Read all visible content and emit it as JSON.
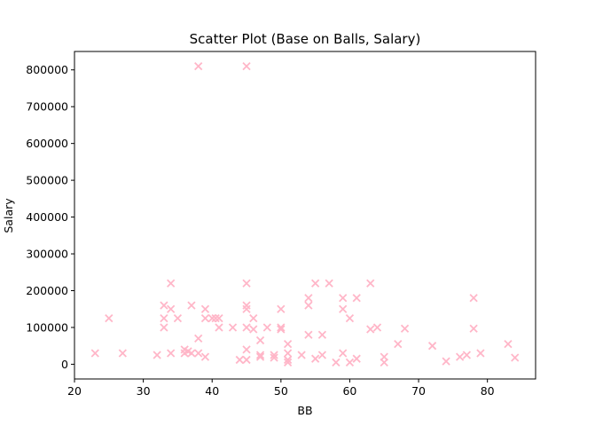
{
  "chart_data": {
    "type": "scatter",
    "title": "Scatter Plot (Base on Balls, Salary)",
    "xlabel": "BB",
    "ylabel": "Salary",
    "xlim": [
      20,
      87
    ],
    "ylim": [
      -40000,
      850000
    ],
    "xticks": [
      20,
      30,
      40,
      50,
      60,
      70,
      80
    ],
    "yticks": [
      0,
      100000,
      200000,
      300000,
      400000,
      500000,
      600000,
      700000,
      800000
    ],
    "marker": "x",
    "marker_color": "#ffb6c8",
    "grid": false,
    "points": [
      [
        38,
        810000
      ],
      [
        45,
        810000
      ],
      [
        34,
        220000
      ],
      [
        45,
        220000
      ],
      [
        55,
        220000
      ],
      [
        57,
        220000
      ],
      [
        63,
        220000
      ],
      [
        54,
        180000
      ],
      [
        59,
        180000
      ],
      [
        61,
        180000
      ],
      [
        78,
        180000
      ],
      [
        33,
        160000
      ],
      [
        37,
        160000
      ],
      [
        45,
        160000
      ],
      [
        54,
        160000
      ],
      [
        34,
        150000
      ],
      [
        39,
        150000
      ],
      [
        45,
        150000
      ],
      [
        50,
        150000
      ],
      [
        59,
        150000
      ],
      [
        25,
        125000
      ],
      [
        33,
        125000
      ],
      [
        35,
        125000
      ],
      [
        39,
        125000
      ],
      [
        40,
        125000
      ],
      [
        40.5,
        125000
      ],
      [
        41,
        125000
      ],
      [
        46,
        125000
      ],
      [
        60,
        125000
      ],
      [
        33,
        100000
      ],
      [
        41,
        100000
      ],
      [
        43,
        100000
      ],
      [
        45,
        100000
      ],
      [
        46,
        95000
      ],
      [
        48,
        100000
      ],
      [
        50,
        100000
      ],
      [
        50,
        95000
      ],
      [
        63,
        95000
      ],
      [
        64,
        100000
      ],
      [
        68,
        97000
      ],
      [
        78,
        97000
      ],
      [
        38,
        70000
      ],
      [
        47,
        65000
      ],
      [
        54,
        80000
      ],
      [
        56,
        80000
      ],
      [
        51,
        55000
      ],
      [
        67,
        55000
      ],
      [
        72,
        50000
      ],
      [
        83,
        55000
      ],
      [
        23,
        30000
      ],
      [
        27,
        30000
      ],
      [
        32,
        25000
      ],
      [
        34,
        30000
      ],
      [
        36,
        40000
      ],
      [
        36,
        30000
      ],
      [
        36.5,
        35000
      ],
      [
        37,
        30000
      ],
      [
        38,
        30000
      ],
      [
        39,
        20000
      ],
      [
        45,
        40000
      ],
      [
        47,
        25000
      ],
      [
        49,
        25000
      ],
      [
        51,
        30000
      ],
      [
        53,
        25000
      ],
      [
        56,
        25000
      ],
      [
        59,
        30000
      ],
      [
        65,
        20000
      ],
      [
        76,
        20000
      ],
      [
        77,
        25000
      ],
      [
        79,
        30000
      ],
      [
        84,
        18000
      ],
      [
        44,
        12000
      ],
      [
        45,
        12000
      ],
      [
        47,
        20000
      ],
      [
        49,
        18000
      ],
      [
        51,
        12000
      ],
      [
        51,
        5000
      ],
      [
        55,
        15000
      ],
      [
        58,
        5000
      ],
      [
        60,
        5000
      ],
      [
        61,
        15000
      ],
      [
        65,
        5000
      ],
      [
        74,
        8000
      ]
    ]
  }
}
